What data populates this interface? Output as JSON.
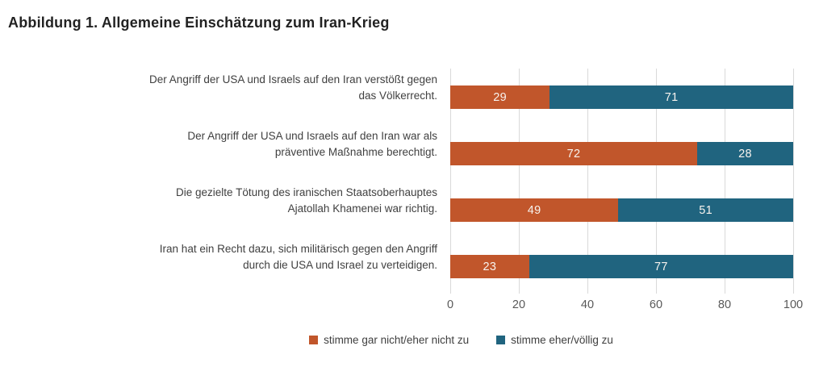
{
  "title": "Abbildung 1. Allgemeine Einschätzung zum Iran-Krieg",
  "chart_data": {
    "type": "bar",
    "orientation": "horizontal",
    "stacked": true,
    "title": "Abbildung 1. Allgemeine Einschätzung zum Iran-Krieg",
    "categories": [
      "Der Angriff der USA und Israels auf den Iran verstößt gegen das Völkerrecht.",
      "Der Angriff der USA und Israels auf den Iran war als präventive Maßnahme berechtigt.",
      "Die gezielte Tötung des iranischen Staatsoberhauptes Ajatollah Khamenei war richtig.",
      "Iran hat ein Recht dazu, sich militärisch gegen den Angriff durch die USA und Israel zu verteidigen."
    ],
    "series": [
      {
        "name": "stimme gar nicht/eher nicht zu",
        "color": "#C1562B",
        "values": [
          29,
          72,
          49,
          23
        ]
      },
      {
        "name": "stimme eher/völlig zu",
        "color": "#20647F",
        "values": [
          71,
          28,
          51,
          77
        ]
      }
    ],
    "xlim": [
      0,
      100
    ],
    "xticks": [
      "0",
      "20",
      "40",
      "60",
      "80",
      "100"
    ],
    "grid": true,
    "legend_position": "bottom",
    "value_labels": "inside-center"
  },
  "display": {
    "category_lines": [
      [
        "Der Angriff der USA und Israels auf den Iran verstößt gegen",
        "das Völkerrecht."
      ],
      [
        "Der Angriff der USA und Israels auf den Iran war als",
        "präventive Maßnahme berechtigt."
      ],
      [
        "Die gezielte Tötung des iranischen Staatsoberhauptes",
        "Ajatollah Khamenei war richtig."
      ],
      [
        "Iran hat ein Recht dazu, sich militärisch gegen den Angriff",
        "durch die USA und Israel zu verteidigen."
      ]
    ]
  },
  "colors": {
    "disagree": "#C1562B",
    "agree": "#20647F",
    "gridline": "#D9D9D9",
    "axis_text": "#595959",
    "label_text": "#404040",
    "title_text": "#222222",
    "background": "#FFFFFF"
  }
}
